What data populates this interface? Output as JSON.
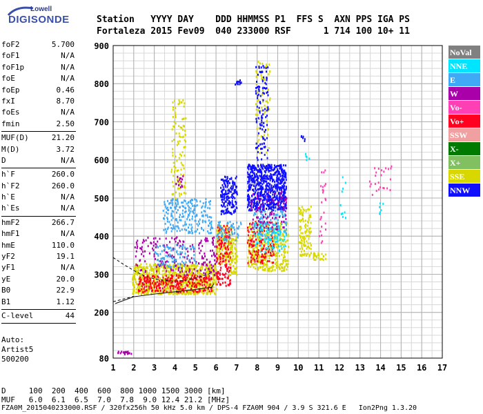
{
  "logo": {
    "line1": "Lowell",
    "line2": "DIGISONDE"
  },
  "header": {
    "labels": "Station   YYYY DAY    DDD HHMMSS P1  FFS S  AXN PPS IGA PS",
    "values": "Fortaleza 2015 Fev09  040 233000 RSF      1 714 100 10+ 11"
  },
  "params": [
    [
      {
        "k": "foF2",
        "v": "5.700"
      },
      {
        "k": "foF1",
        "v": "N/A"
      },
      {
        "k": "foF1p",
        "v": "N/A"
      },
      {
        "k": "foE",
        "v": "N/A"
      },
      {
        "k": "foEp",
        "v": "0.46"
      },
      {
        "k": "fxI",
        "v": "8.70"
      },
      {
        "k": "foEs",
        "v": "N/A"
      },
      {
        "k": "fmin",
        "v": "2.50"
      }
    ],
    [
      {
        "k": "MUF(D)",
        "v": "21.20"
      },
      {
        "k": "M(D)",
        "v": "3.72"
      },
      {
        "k": "D",
        "v": "N/A"
      }
    ],
    [
      {
        "k": "h`F",
        "v": "260.0"
      },
      {
        "k": "h`F2",
        "v": "260.0"
      },
      {
        "k": "h`E",
        "v": "N/A"
      },
      {
        "k": "h`Es",
        "v": "N/A"
      }
    ],
    [
      {
        "k": "hmF2",
        "v": "266.7"
      },
      {
        "k": "hmF1",
        "v": "N/A"
      },
      {
        "k": "hmE",
        "v": "110.0"
      },
      {
        "k": "yF2",
        "v": "19.1"
      },
      {
        "k": "yF1",
        "v": "N/A"
      },
      {
        "k": "yE",
        "v": "20.0"
      },
      {
        "k": "B0",
        "v": "22.9"
      },
      {
        "k": "B1",
        "v": "1.12"
      }
    ],
    [
      {
        "k": "C-level",
        "v": "44"
      }
    ]
  ],
  "auto": {
    "line1": "Auto:",
    "line2": "Artist5",
    "line3": "500200"
  },
  "dmuf": {
    "d_line": "D     100  200  400  600  800 1000 1500 3000 [km]",
    "muf_line": "MUF   6.0  6.1  6.5  7.0  7.8  9.0 12.4 21.2 [MHz]"
  },
  "footer": "FZA0M_2015040233000.RSF / 320fx256h 50 kHz 5.0 km / DPS-4 FZA0M 904 / 3.9 S 321.6 E   Ion2Png 1.3.20",
  "chart_data": {
    "type": "scatter",
    "xlim": [
      1,
      17
    ],
    "ylim": [
      80,
      900
    ],
    "x_ticks": [
      1,
      2,
      3,
      4,
      5,
      6,
      7,
      8,
      9,
      10,
      11,
      12,
      13,
      14,
      15,
      16,
      17
    ],
    "y_ticks": [
      80,
      200,
      300,
      400,
      500,
      600,
      700,
      800,
      900
    ],
    "grid": true,
    "legend_position": "right",
    "legend": [
      {
        "name": "NoVal",
        "color": "#808080"
      },
      {
        "name": "NNE",
        "color": "#00e5ff"
      },
      {
        "name": "E",
        "color": "#3fa9f5"
      },
      {
        "name": "W",
        "color": "#aa00aa"
      },
      {
        "name": "Vo-",
        "color": "#ff3fb4"
      },
      {
        "name": "Vo+",
        "color": "#ff0020"
      },
      {
        "name": "SSW",
        "color": "#f0a0a0"
      },
      {
        "name": "X-",
        "color": "#007a00"
      },
      {
        "name": "X+",
        "color": "#80c060"
      },
      {
        "name": "SSE",
        "color": "#d8d800"
      },
      {
        "name": "NNW",
        "color": "#1010ff"
      }
    ],
    "clusters": [
      {
        "series": "SSE",
        "x": [
          1.9,
          6.0
        ],
        "y": [
          250,
          330
        ],
        "n": 900
      },
      {
        "series": "Vo+",
        "x": [
          2.2,
          5.8
        ],
        "y": [
          255,
          300
        ],
        "n": 260
      },
      {
        "series": "W",
        "x": [
          2.0,
          6.0
        ],
        "y": [
          300,
          400
        ],
        "n": 200
      },
      {
        "series": "E",
        "x": [
          3.4,
          5.8
        ],
        "y": [
          410,
          500
        ],
        "n": 220
      },
      {
        "series": "E",
        "x": [
          3.0,
          5.0
        ],
        "y": [
          320,
          380
        ],
        "n": 90
      },
      {
        "series": "SSE",
        "x": [
          3.8,
          4.5
        ],
        "y": [
          500,
          760
        ],
        "n": 110
      },
      {
        "series": "W",
        "x": [
          4.0,
          4.4
        ],
        "y": [
          530,
          560
        ],
        "n": 15
      },
      {
        "series": "SSE",
        "x": [
          6.0,
          6.8
        ],
        "y": [
          330,
          430
        ],
        "n": 160
      },
      {
        "series": "Vo+",
        "x": [
          6.0,
          6.7
        ],
        "y": [
          270,
          430
        ],
        "n": 150
      },
      {
        "series": "NNW",
        "x": [
          6.2,
          7.0
        ],
        "y": [
          460,
          560
        ],
        "n": 170
      },
      {
        "series": "SSE",
        "x": [
          6.6,
          7.0
        ],
        "y": [
          300,
          400
        ],
        "n": 70
      },
      {
        "series": "E",
        "x": [
          6.0,
          7.2
        ],
        "y": [
          390,
          440
        ],
        "n": 60
      },
      {
        "series": "NNW",
        "x": [
          6.9,
          7.2
        ],
        "y": [
          800,
          812
        ],
        "n": 12
      },
      {
        "series": "NNW",
        "x": [
          7.5,
          9.4
        ],
        "y": [
          470,
          590
        ],
        "n": 700
      },
      {
        "series": "SSE",
        "x": [
          7.5,
          9.5
        ],
        "y": [
          310,
          440
        ],
        "n": 380
      },
      {
        "series": "Vo+",
        "x": [
          7.5,
          8.8
        ],
        "y": [
          330,
          440
        ],
        "n": 140
      },
      {
        "series": "NNE",
        "x": [
          7.8,
          9.4
        ],
        "y": [
          360,
          440
        ],
        "n": 100
      },
      {
        "series": "E",
        "x": [
          7.8,
          9.4
        ],
        "y": [
          400,
          470
        ],
        "n": 100
      },
      {
        "series": "W",
        "x": [
          7.6,
          9.4
        ],
        "y": [
          420,
          520
        ],
        "n": 90
      },
      {
        "series": "SSE",
        "x": [
          7.9,
          8.6
        ],
        "y": [
          620,
          860
        ],
        "n": 90
      },
      {
        "series": "NNW",
        "x": [
          7.9,
          8.5
        ],
        "y": [
          600,
          850
        ],
        "n": 110
      },
      {
        "series": "SSE",
        "x": [
          10.0,
          10.6
        ],
        "y": [
          350,
          480
        ],
        "n": 120
      },
      {
        "series": "SSE",
        "x": [
          10.7,
          11.3
        ],
        "y": [
          340,
          360
        ],
        "n": 30
      },
      {
        "series": "NNW",
        "x": [
          10.0,
          10.3
        ],
        "y": [
          650,
          665
        ],
        "n": 6
      },
      {
        "series": "NNE",
        "x": [
          10.3,
          10.5
        ],
        "y": [
          600,
          620
        ],
        "n": 5
      },
      {
        "series": "Vo-",
        "x": [
          11.0,
          11.3
        ],
        "y": [
          380,
          580
        ],
        "n": 25
      },
      {
        "series": "NNE",
        "x": [
          12.0,
          12.3
        ],
        "y": [
          440,
          560
        ],
        "n": 10
      },
      {
        "series": "Vo-",
        "x": [
          13.3,
          14.6
        ],
        "y": [
          510,
          590
        ],
        "n": 25
      },
      {
        "series": "NNE",
        "x": [
          13.8,
          14.1
        ],
        "y": [
          460,
          520
        ],
        "n": 6
      },
      {
        "series": "W",
        "x": [
          1.2,
          1.9
        ],
        "y": [
          92,
          100
        ],
        "n": 18
      }
    ],
    "trace_line": {
      "x": [
        1.1,
        2.0,
        3.0,
        4.0,
        5.0,
        5.8,
        5.9
      ],
      "y": [
        223,
        241,
        248,
        254,
        260,
        266,
        276
      ]
    },
    "dashed_line": {
      "x": [
        1.0,
        1.5,
        2.0,
        2.5,
        3.0,
        3.5,
        4.0,
        4.5,
        5.0,
        5.5,
        5.8
      ],
      "y": [
        344,
        326,
        310,
        296,
        288,
        284,
        282,
        284,
        290,
        298,
        304
      ]
    }
  }
}
